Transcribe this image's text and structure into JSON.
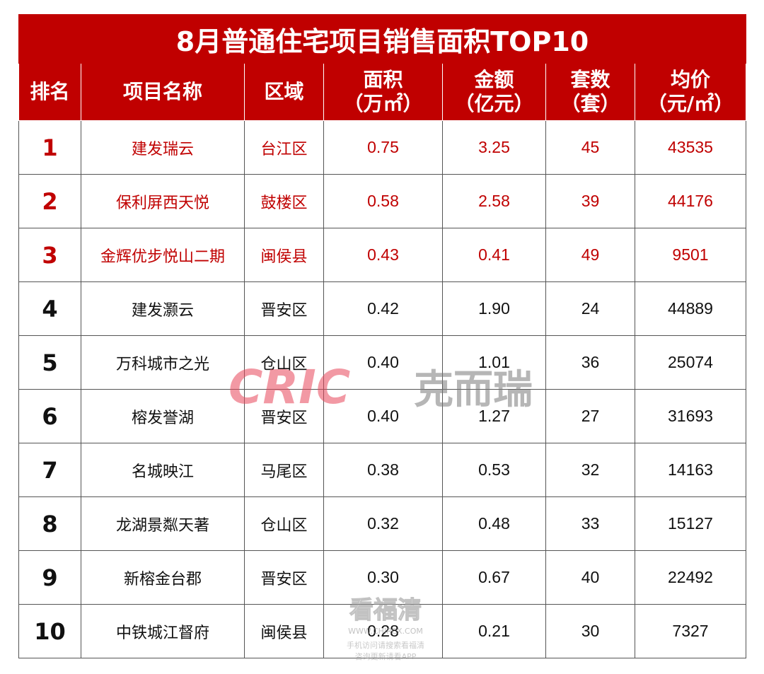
{
  "title": "8月普通住宅项目销售面积TOP10",
  "headers": {
    "rank": "排名",
    "name": "项目名称",
    "district": "区域",
    "area_l1": "面积",
    "area_l2": "（万㎡）",
    "amount_l1": "金额",
    "amount_l2": "（亿元）",
    "units_l1": "套数",
    "units_l2": "（套）",
    "price_l1": "均价",
    "price_l2": "（元/㎡）"
  },
  "rows": [
    {
      "rank": "1",
      "name": "建发瑞云",
      "district": "台江区",
      "area": "0.75",
      "amount": "3.25",
      "units": "45",
      "price": "43535"
    },
    {
      "rank": "2",
      "name": "保利屏西天悦",
      "district": "鼓楼区",
      "area": "0.58",
      "amount": "2.58",
      "units": "39",
      "price": "44176"
    },
    {
      "rank": "3",
      "name": "金辉优步悦山二期",
      "district": "闽侯县",
      "area": "0.43",
      "amount": "0.41",
      "units": "49",
      "price": "9501"
    },
    {
      "rank": "4",
      "name": "建发灏云",
      "district": "晋安区",
      "area": "0.42",
      "amount": "1.90",
      "units": "24",
      "price": "44889"
    },
    {
      "rank": "5",
      "name": "万科城市之光",
      "district": "仓山区",
      "area": "0.40",
      "amount": "1.01",
      "units": "36",
      "price": "25074"
    },
    {
      "rank": "6",
      "name": "榕发誉湖",
      "district": "晋安区",
      "area": "0.40",
      "amount": "1.27",
      "units": "27",
      "price": "31693"
    },
    {
      "rank": "7",
      "name": "名城映江",
      "district": "马尾区",
      "area": "0.38",
      "amount": "0.53",
      "units": "32",
      "price": "14163"
    },
    {
      "rank": "8",
      "name": "龙湖景粼天著",
      "district": "仓山区",
      "area": "0.32",
      "amount": "0.48",
      "units": "33",
      "price": "15127"
    },
    {
      "rank": "9",
      "name": "新榕金台郡",
      "district": "晋安区",
      "area": "0.30",
      "amount": "0.67",
      "units": "40",
      "price": "22492"
    },
    {
      "rank": "10",
      "name": "中铁城江督府",
      "district": "闽侯县",
      "area": "0.28",
      "amount": "0.21",
      "units": "30",
      "price": "7327"
    }
  ],
  "highlight_color": "#c00000",
  "watermark": {
    "brand_latin": "CRIC",
    "brand_cn": "克而瑞",
    "brand_color": "#e8465a",
    "brand_cn_color": "#7a7a7a"
  },
  "watermark2": {
    "text_cn": "看福清",
    "domain": "WWW.CHIRCX.COM",
    "line1": "手机访问请搜索看福清",
    "line2": "咨询更新请看APP"
  }
}
